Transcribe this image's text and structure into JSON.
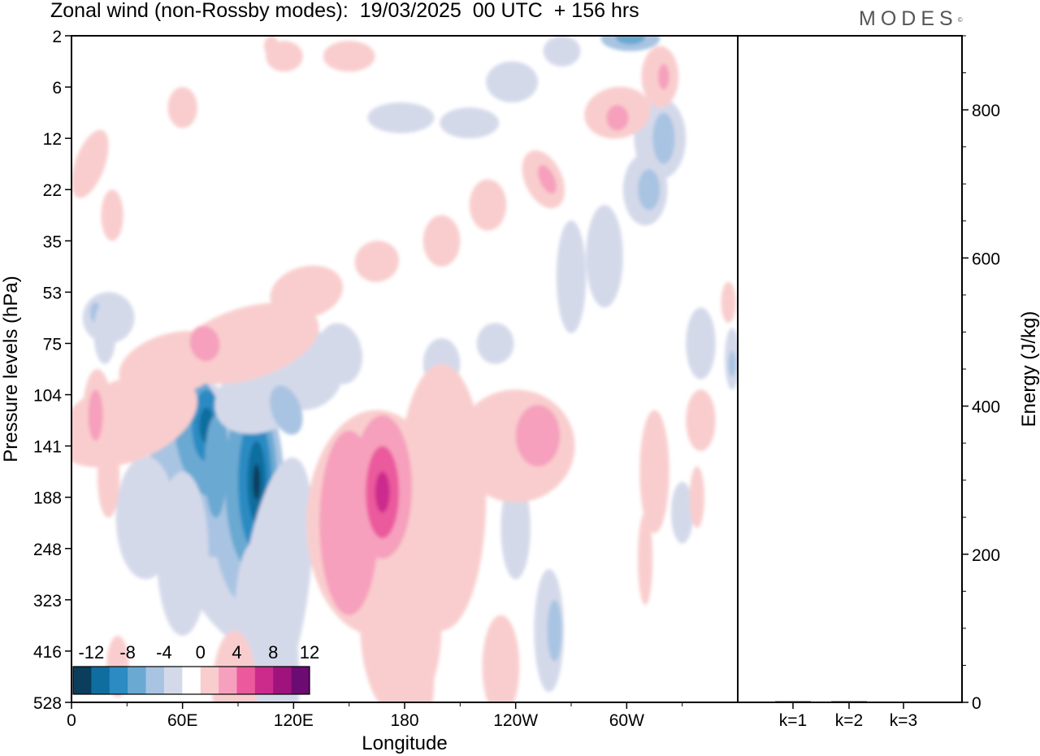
{
  "header": {
    "title": "Zonal wind (non-Rossby modes):  19/03/2025  00 UTC  + 156 hrs",
    "logo": "MODES",
    "logo_mark": "©"
  },
  "chart_data": [
    {
      "type": "heatmap",
      "title": "Zonal wind (non-Rossby modes):  19/03/2025  00 UTC  + 156 hrs",
      "xlabel": "Longitude",
      "ylabel": "Pressure levels (hPa)",
      "x_ticks": [
        "0",
        "60E",
        "120E",
        "180",
        "120W",
        "60W"
      ],
      "x_tick_values": [
        0,
        60,
        120,
        180,
        240,
        300
      ],
      "xlim": [
        0,
        360
      ],
      "y_ticks": [
        "2",
        "6",
        "12",
        "22",
        "35",
        "53",
        "75",
        "104",
        "141",
        "188",
        "248",
        "323",
        "416",
        "528"
      ],
      "y_order": "top-to-bottom",
      "colorbar": {
        "labels": [
          "-12",
          "-8",
          "-4",
          "0",
          "4",
          "8",
          "12"
        ],
        "levels": [
          -14,
          -12,
          -10,
          -8,
          -6,
          -4,
          -2,
          2,
          4,
          6,
          8,
          10,
          12,
          14
        ],
        "colors": [
          "#0b3d5c",
          "#0f6e9f",
          "#2c8bc3",
          "#6aa9d2",
          "#a9c4e2",
          "#d4d9ea",
          "#ffffff",
          "#f9cdcd",
          "#f6a0bd",
          "#eb5a9c",
          "#cc2b8c",
          "#a0137d",
          "#6c0b72"
        ]
      },
      "features": [
        {
          "lon": 100,
          "level": 141,
          "value": -14
        },
        {
          "lon": 73,
          "level": 120,
          "value": -10
        },
        {
          "lon": 168,
          "level": 135,
          "value": 8
        },
        {
          "lon": 145,
          "level": 170,
          "value": 6
        },
        {
          "lon": 262,
          "level": 118,
          "value": 4
        },
        {
          "lon": 310,
          "level": 12,
          "value": -6
        }
      ]
    },
    {
      "type": "bar",
      "categories": [
        "k=1",
        "k=2",
        "k=3"
      ],
      "values": [
        1.5,
        1.5,
        1
      ],
      "ylabel": "Energy (J/kg)",
      "ylim": [
        0,
        900
      ],
      "y_ticks": [
        "0",
        "200",
        "400",
        "600",
        "800"
      ],
      "y_tick_values": [
        0,
        200,
        400,
        600,
        800
      ]
    }
  ]
}
